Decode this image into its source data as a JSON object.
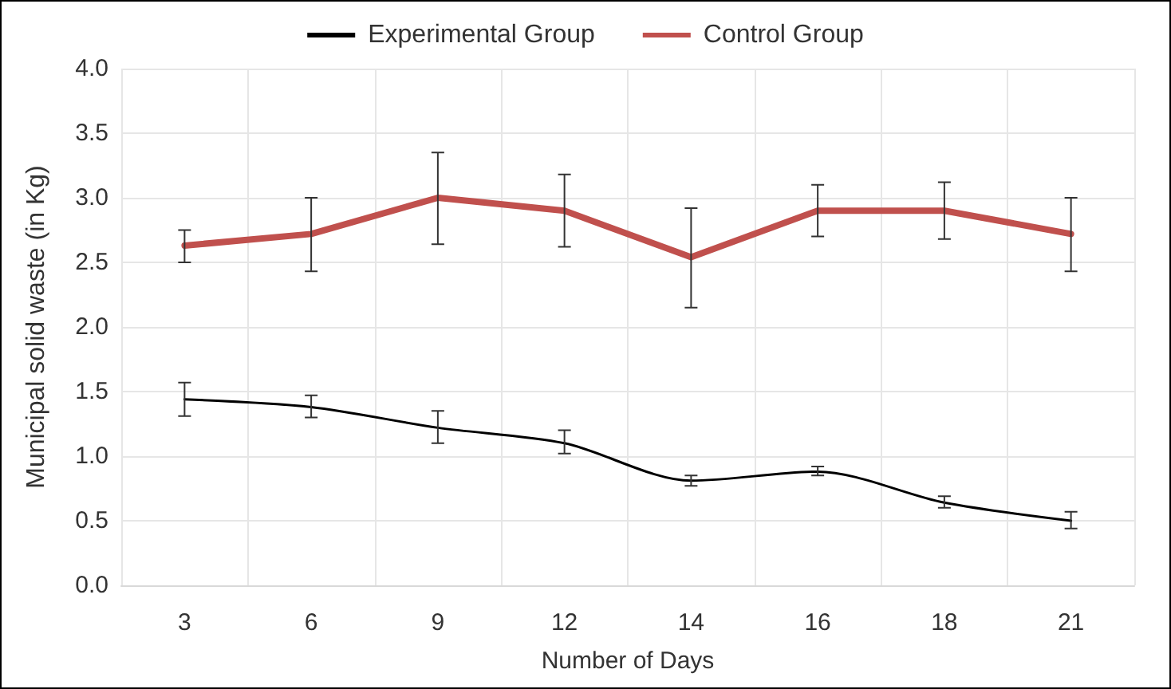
{
  "chart_data": {
    "type": "line",
    "xlabel": "Number of Days",
    "ylabel": "Municipal solid waste (in Kg)",
    "categories": [
      "3",
      "6",
      "9",
      "12",
      "14",
      "16",
      "18",
      "21"
    ],
    "series": [
      {
        "name": "Experimental Group",
        "color": "#000000",
        "values": [
          1.44,
          1.38,
          1.22,
          1.1,
          0.81,
          0.88,
          0.64,
          0.5
        ],
        "errors": [
          [
            1.31,
            1.57
          ],
          [
            1.3,
            1.47
          ],
          [
            1.1,
            1.35
          ],
          [
            1.02,
            1.2
          ],
          [
            0.77,
            0.85
          ],
          [
            0.85,
            0.92
          ],
          [
            0.6,
            0.69
          ],
          [
            0.44,
            0.57
          ]
        ]
      },
      {
        "name": "Control Group",
        "color": "#c0504d",
        "values": [
          2.63,
          2.72,
          3.0,
          2.9,
          2.54,
          2.9,
          2.9,
          2.72
        ],
        "errors": [
          [
            2.5,
            2.75
          ],
          [
            2.43,
            3.0
          ],
          [
            2.64,
            3.35
          ],
          [
            2.62,
            3.18
          ],
          [
            2.15,
            2.92
          ],
          [
            2.7,
            3.1
          ],
          [
            2.68,
            3.12
          ],
          [
            2.43,
            3.0
          ]
        ]
      }
    ],
    "ylim": [
      0,
      4
    ],
    "yticks": [
      {
        "value": 0,
        "label": "0.0"
      },
      {
        "value": 0.5,
        "label": "0.5"
      },
      {
        "value": 1,
        "label": "1.0"
      },
      {
        "value": 1.5,
        "label": "1.5"
      },
      {
        "value": 2,
        "label": "2.0"
      },
      {
        "value": 2.5,
        "label": "2.5"
      },
      {
        "value": 3,
        "label": "3.0"
      },
      {
        "value": 3.5,
        "label": "3.5"
      },
      {
        "value": 4,
        "label": "4.0"
      }
    ],
    "grid": true,
    "legend": "top",
    "line_style": "solid"
  }
}
